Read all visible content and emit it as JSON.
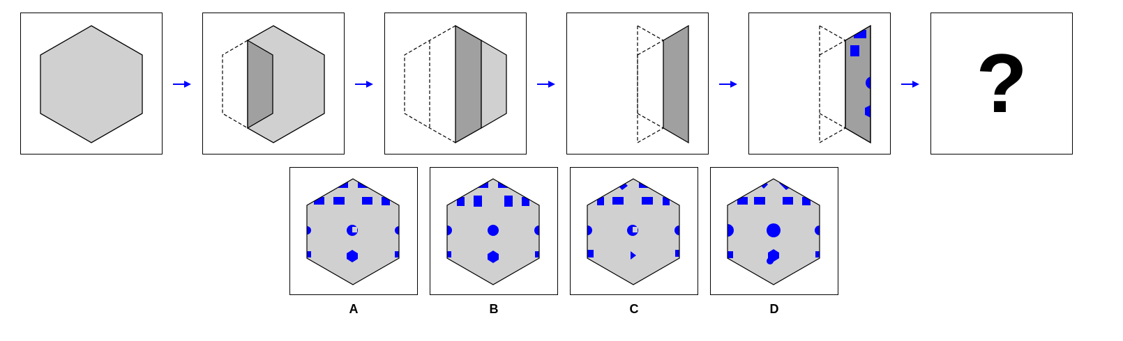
{
  "colors": {
    "face": "#d0d0d0",
    "fold": "#a0a0a0",
    "hole": "#0000ff",
    "stroke": "#000000",
    "arrow": "#0000ff"
  },
  "question_mark": "?",
  "options": [
    {
      "label": "A"
    },
    {
      "label": "B"
    },
    {
      "label": "C"
    },
    {
      "label": "D"
    }
  ]
}
